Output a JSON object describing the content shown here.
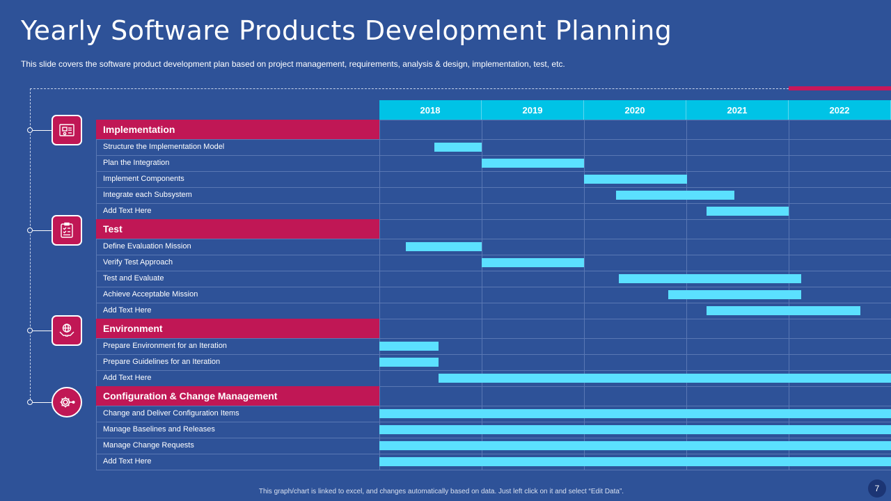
{
  "slide": {
    "title": "Yearly Software Products Development Planning",
    "subtitle": "This slide covers the software product development plan based on project management, requirements, analysis & design, implementation, test, etc.",
    "footnote": "This graph/chart is linked to excel, and changes automatically based on data. Just left click on it and select “Edit Data”.",
    "page_number": "7"
  },
  "icons": [
    "blueprint-icon",
    "checklist-icon",
    "globe-in-hands-icon",
    "gear-settings-icon"
  ],
  "colors": {
    "background": "#2e5298",
    "accent": "#c01755",
    "header": "#00c3e6",
    "bar": "#5be0ff"
  },
  "chart_data": {
    "type": "gantt",
    "title": "Yearly Software Products Development Planning",
    "years": [
      "2018",
      "2019",
      "2020",
      "2021",
      "2022"
    ],
    "axis_range": [
      2018,
      2023
    ],
    "groups": [
      {
        "category": "Implementation",
        "tasks": [
          {
            "name": "Structure the Implementation Model",
            "start": 2018.54,
            "end": 2019.0
          },
          {
            "name": "Plan the Integration",
            "start": 2019.0,
            "end": 2020.0
          },
          {
            "name": "Implement Components",
            "start": 2020.0,
            "end": 2021.01
          },
          {
            "name": "Integrate each Subsystem",
            "start": 2020.31,
            "end": 2021.47
          },
          {
            "name": "Add Text Here",
            "start": 2021.2,
            "end": 2022.0
          }
        ]
      },
      {
        "category": "Test",
        "tasks": [
          {
            "name": "Define Evaluation Mission",
            "start": 2018.26,
            "end": 2019.0
          },
          {
            "name": "Verify Test Approach",
            "start": 2019.0,
            "end": 2020.0
          },
          {
            "name": "Test and Evaluate",
            "start": 2020.34,
            "end": 2022.12
          },
          {
            "name": "Achieve Acceptable Mission",
            "start": 2020.82,
            "end": 2022.12
          },
          {
            "name": "Add Text Here",
            "start": 2021.2,
            "end": 2022.7
          }
        ]
      },
      {
        "category": "Environment",
        "tasks": [
          {
            "name": "Prepare Environment for an Iteration",
            "start": 2018.0,
            "end": 2018.58
          },
          {
            "name": "Prepare Guidelines for an Iteration",
            "start": 2018.0,
            "end": 2018.58
          },
          {
            "name": "Add Text Here",
            "start": 2018.58,
            "end": 2023.0
          }
        ]
      },
      {
        "category": "Configuration & Change Management",
        "tasks": [
          {
            "name": "Change and Deliver Configuration Items",
            "start": 2018.0,
            "end": 2023.0
          },
          {
            "name": "Manage Baselines and Releases",
            "start": 2018.0,
            "end": 2023.0
          },
          {
            "name": "Manage Change Requests",
            "start": 2018.0,
            "end": 2023.0
          },
          {
            "name": "Add Text Here",
            "start": 2018.0,
            "end": 2023.0
          }
        ]
      }
    ]
  }
}
